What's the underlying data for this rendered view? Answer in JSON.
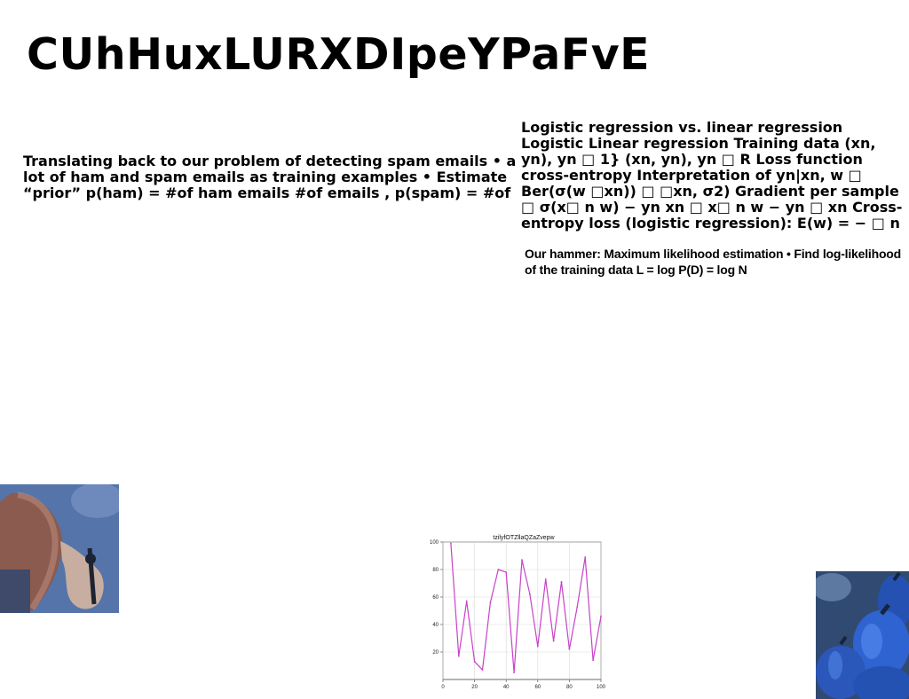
{
  "title": "CUhHuxLURXDIpeYPaFvE",
  "left_text": "Translating back to our problem of detecting spam emails • a lot of ham and spam emails as training examples • Estimate “prior” p(ham) = #of ham emails #of emails , p(spam) = #of",
  "right_text": "Logistic regression vs. linear regression Logistic Linear regression Training data (xn, yn), yn □ 1} (xn, yn), yn □ R Loss function cross-entropy Interpretation of yn|xn, w □ Ber(σ(w □xn)) □ □xn, σ2) Gradient per sample □ σ(x□ n w) − yn xn □ x□ n w − yn □ xn Cross-entropy loss (logistic regression): E(w) = − □ n {yn log σ(w",
  "right_text_2": "Our hammer: Maximum likelihood estimation • Find log-likelihood of the training data L = log P(D) = log N",
  "chart_data": {
    "type": "line",
    "title": "tzilyfOTZllaQZaZvepw",
    "x": [
      5,
      10,
      15,
      20,
      25,
      30,
      35,
      40,
      45,
      50,
      55,
      60,
      65,
      70,
      75,
      80,
      85,
      90,
      95,
      100
    ],
    "series": [
      {
        "values": [
          99,
          17,
          57,
          13,
          7,
          56,
          80,
          78,
          5,
          87,
          62,
          24,
          73,
          28,
          71,
          22,
          53,
          89,
          14,
          46
        ]
      }
    ],
    "xlim": [
      0,
      100
    ],
    "ylim": [
      0,
      100
    ],
    "xticks": [
      "0",
      "20",
      "40",
      "60",
      "80",
      "100"
    ],
    "yticks": [
      "20",
      "40",
      "60",
      "80",
      "100"
    ],
    "grid": true,
    "line_color": "#c842c8"
  }
}
